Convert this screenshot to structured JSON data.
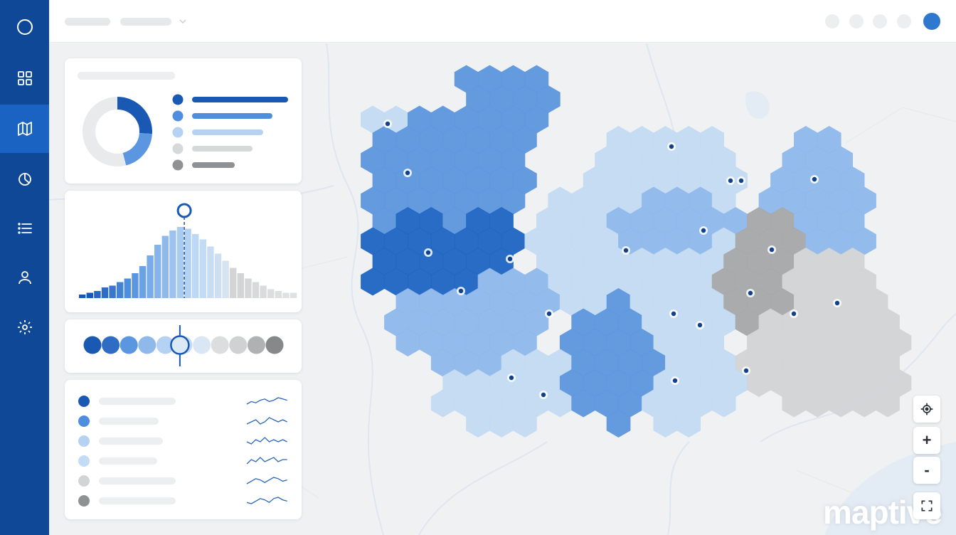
{
  "app": {
    "brand": "maptive"
  },
  "sidebar": {
    "items": [
      {
        "icon": "circle-logo-icon",
        "active": false
      },
      {
        "icon": "grid-icon",
        "active": false
      },
      {
        "icon": "map-icon",
        "active": true
      },
      {
        "icon": "pie-chart-icon",
        "active": false
      },
      {
        "icon": "list-icon",
        "active": false
      },
      {
        "icon": "user-icon",
        "active": false
      },
      {
        "icon": "gear-icon",
        "active": false
      }
    ]
  },
  "palette": {
    "accent": "#1b63c2",
    "sidebar": "#0e4896",
    "blue_dark": "#1f65c4",
    "blue_mid": "#5d97de",
    "blue_light": "#8fb9eb",
    "blue_pale": "#c3dbf4",
    "gray_light": "#d3d4d6",
    "gray_dark": "#a7a8aa"
  },
  "legend_card": {
    "donut_fractions": [
      0.26,
      0.2,
      0.0,
      0.0,
      0.54
    ],
    "items": [
      {
        "color": "#1a59b3"
      },
      {
        "color": "#4f8ede"
      },
      {
        "color": "#b6d2f3"
      },
      {
        "color": "#d7d8da"
      },
      {
        "color": "#909193"
      }
    ]
  },
  "histogram_card": {
    "values": [
      2,
      3,
      4,
      6,
      7,
      9,
      11,
      14,
      18,
      24,
      30,
      35,
      38,
      40,
      39,
      36,
      33,
      29,
      25,
      21,
      17,
      14,
      11,
      9,
      7,
      5,
      4,
      3,
      3
    ],
    "marker_index": 13
  },
  "scale_card": {
    "swatches": 11,
    "selected_index": 5
  },
  "list_card": {
    "rows": [
      {
        "color": "#1a59b3",
        "trend": [
          4,
          6,
          5,
          7,
          8,
          6,
          7,
          9,
          8,
          7
        ]
      },
      {
        "color": "#4f8ede",
        "trend": [
          5,
          6,
          7,
          5,
          6,
          8,
          7,
          6,
          7,
          6
        ]
      },
      {
        "color": "#b6d2f3",
        "trend": [
          6,
          5,
          7,
          6,
          8,
          6,
          7,
          6,
          7,
          6
        ]
      },
      {
        "color": "#c3dbf4",
        "trend": [
          5,
          7,
          6,
          8,
          6,
          7,
          8,
          6,
          7,
          7
        ]
      },
      {
        "color": "#d3d4d6",
        "trend": [
          4,
          6,
          8,
          7,
          5,
          7,
          9,
          8,
          6,
          7
        ]
      },
      {
        "color": "#909193",
        "trend": [
          5,
          4,
          6,
          8,
          7,
          5,
          8,
          9,
          7,
          6
        ]
      }
    ]
  },
  "map_controls": {
    "locate": "locate-icon",
    "zoom_in_label": "+",
    "zoom_out_label": "-",
    "fullscreen": "fullscreen-icon"
  }
}
